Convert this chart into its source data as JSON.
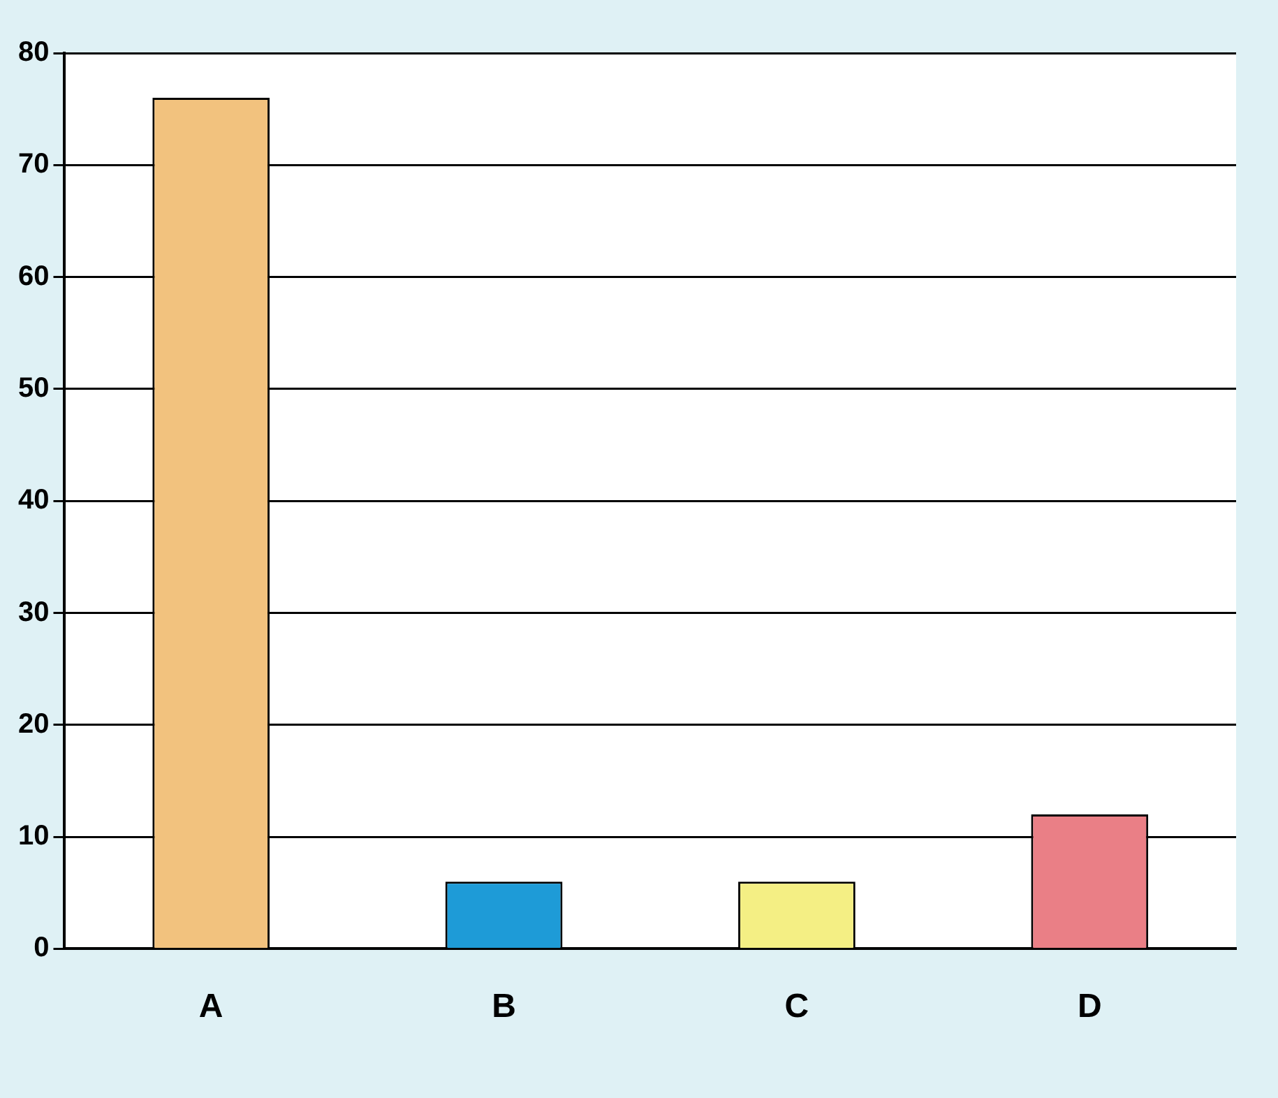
{
  "chart_data": {
    "type": "bar",
    "categories": [
      "A",
      "B",
      "C",
      "D"
    ],
    "values": [
      76,
      6,
      6,
      12
    ],
    "colors": [
      "#f2c27e",
      "#1e9bd7",
      "#f4ef84",
      "#ea7f86"
    ],
    "ylim": [
      0,
      80
    ],
    "yticks": [
      0,
      10,
      20,
      30,
      40,
      50,
      60,
      70,
      80
    ],
    "grid": "y",
    "legend": false
  }
}
